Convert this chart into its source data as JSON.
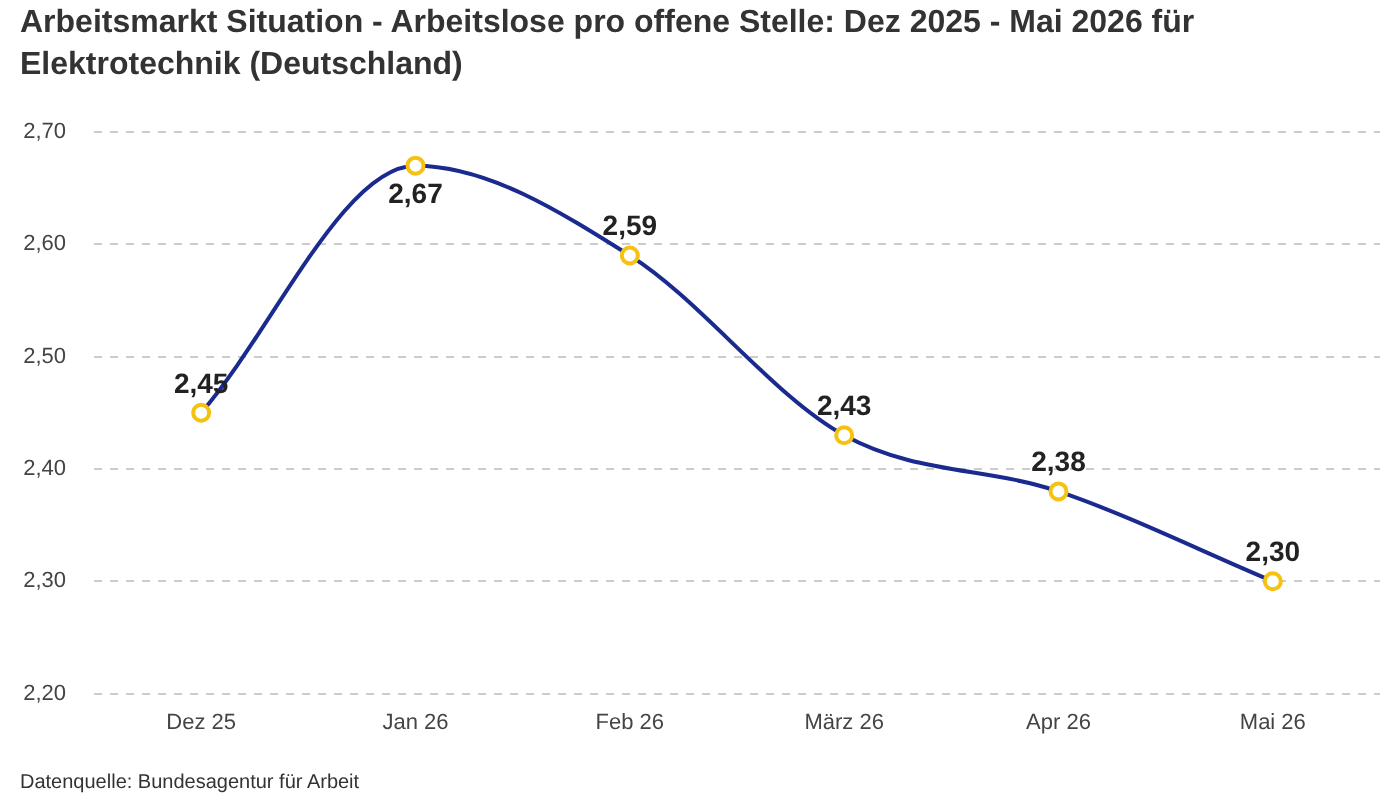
{
  "chart_data": {
    "type": "line",
    "title": "Arbeitsmarkt Situation - Arbeitslose pro offene Stelle: Dez 2025 - Mai 2026 für Elektrotechnik (Deutschland)",
    "annotations": [
      "Datenquelle: Bundesagentur für Arbeit"
    ],
    "categories": [
      "Dez 25",
      "Jan 26",
      "Feb 26",
      "März 26",
      "Apr 26",
      "Mai 26"
    ],
    "series": [
      {
        "color": "#1b2a8f",
        "colors": [
          "#f5c211",
          "#f5c211",
          "#f5c211",
          "#f5c211",
          "#f5c211",
          "#f5c211"
        ],
        "values": [
          2.45,
          2.67,
          2.59,
          2.43,
          2.38,
          2.3
        ],
        "value_labels": [
          "2,45",
          "2,67",
          "2,59",
          "2,43",
          "2,38",
          "2,30"
        ]
      }
    ],
    "ylim": [
      2.2,
      2.7
    ],
    "yticks": [
      {
        "value": 2.2,
        "label": "2,20"
      },
      {
        "value": 2.3,
        "label": "2,30"
      },
      {
        "value": 2.4,
        "label": "2,40"
      },
      {
        "value": 2.5,
        "label": "2,50"
      },
      {
        "value": 2.6,
        "label": "2,60"
      },
      {
        "value": 2.7,
        "label": "2,70"
      }
    ],
    "grid": "y",
    "legend": false,
    "marker": "circle",
    "line_style": "solid"
  }
}
